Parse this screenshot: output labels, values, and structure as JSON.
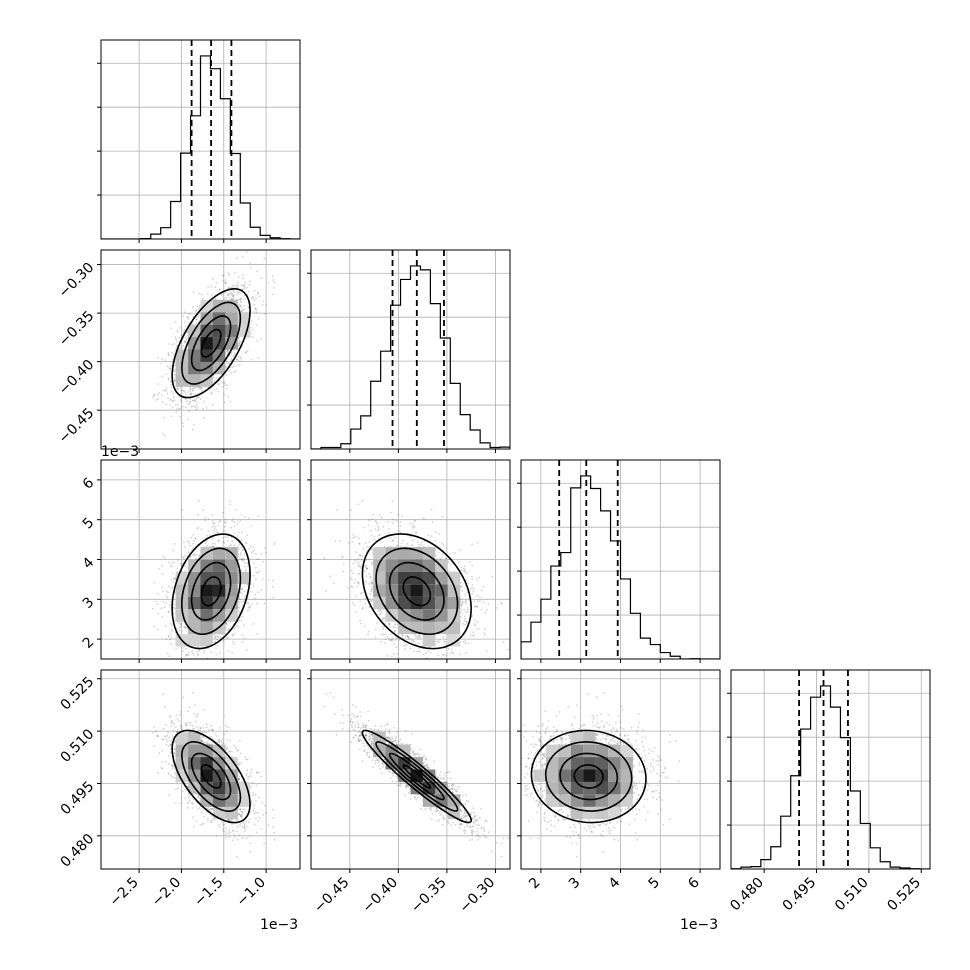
{
  "chart_data": {
    "type": "corner",
    "parameters": [
      {
        "range": [
          -2.95,
          -0.6
        ],
        "ticks": [
          -2.5,
          -2.0,
          -1.5,
          -1.0
        ],
        "tick_labels": [
          "−2.5",
          "−2.0",
          "−1.5",
          "−1.0"
        ],
        "multiplier": "1e−3",
        "mean": -1.65,
        "sd": 0.23,
        "quantiles": [
          -1.88,
          -1.65,
          -1.41
        ]
      },
      {
        "range": [
          -0.49,
          -0.285
        ],
        "ticks": [
          -0.45,
          -0.4,
          -0.35,
          -0.3
        ],
        "tick_labels": [
          "−0.45",
          "−0.40",
          "−0.35",
          "−0.30"
        ],
        "multiplier": "",
        "mean": -0.381,
        "sd": 0.028,
        "quantiles": [
          -0.406,
          -0.381,
          -0.353
        ]
      },
      {
        "range": [
          1.5,
          6.5
        ],
        "ticks": [
          2,
          3,
          4,
          5,
          6
        ],
        "tick_labels": [
          "2",
          "3",
          "4",
          "5",
          "6"
        ],
        "multiplier": "1e−3",
        "mean": 3.2,
        "sd": 0.72,
        "quantiles": [
          2.46,
          3.14,
          3.93
        ]
      },
      {
        "range": [
          0.4705,
          0.5275
        ],
        "ticks": [
          0.48,
          0.495,
          0.51,
          0.525
        ],
        "tick_labels": [
          "0.480",
          "0.495",
          "0.510",
          "0.525"
        ],
        "multiplier": "",
        "mean": 0.497,
        "sd": 0.0066,
        "quantiles": [
          0.49,
          0.497,
          0.504
        ]
      }
    ],
    "correlations": [
      [
        1.0,
        0.6,
        0.3,
        -0.6
      ],
      [
        0.6,
        1.0,
        -0.3,
        -0.95
      ],
      [
        0.3,
        -0.3,
        1.0,
        -0.05
      ],
      [
        -0.6,
        -0.95,
        -0.05,
        1.0
      ]
    ],
    "grid": true,
    "contour_levels": 4,
    "colors": {
      "line": "#000000",
      "grid": "#b0b0b0",
      "points": "#555555"
    }
  }
}
